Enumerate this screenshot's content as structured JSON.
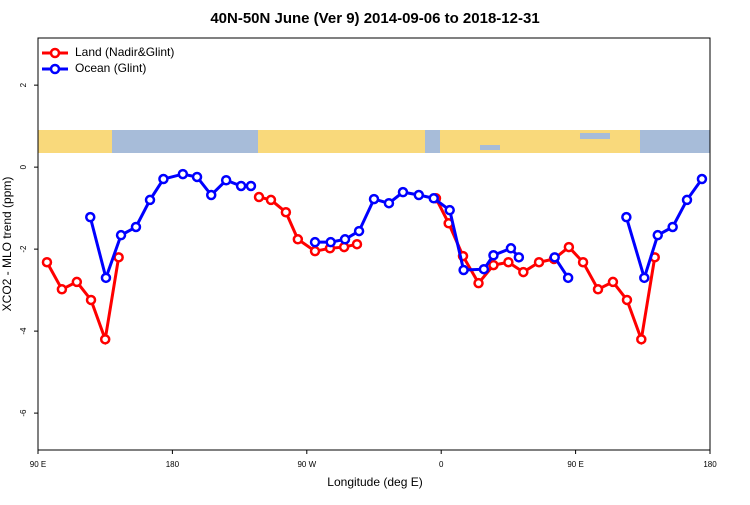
{
  "chart_data": {
    "type": "line",
    "title": "40N-50N June (Ver 9)   2014-09-06 to 2018-12-31",
    "x_label": "Longitude (deg E)",
    "y_label": "XCO2 - MLO trend (ppm)",
    "xlim": [
      90,
      540
    ],
    "xticks": [
      {
        "value": 90,
        "label": "90 E"
      },
      {
        "value": 180,
        "label": "180"
      },
      {
        "value": 270,
        "label": "90 W"
      },
      {
        "value": 360,
        "label": "0"
      },
      {
        "value": 450,
        "label": "90 E"
      },
      {
        "value": 540,
        "label": "180"
      }
    ],
    "ylim": [
      -6.9,
      3.15
    ],
    "yticks": [
      -6,
      -4,
      -2,
      0,
      2
    ],
    "legend": "top-left",
    "series": [
      {
        "name": "Land (Nadir&Glint)",
        "color": "#ff0000",
        "x": [
          96,
          106,
          116,
          125.5,
          135,
          144,
          null,
          238,
          246,
          256,
          264,
          275.5,
          285.5,
          295,
          303.6,
          null,
          356.5,
          365,
          374.6,
          385,
          395,
          405,
          415,
          425.5,
          435.5,
          445.5,
          455,
          465,
          475,
          484.4,
          494,
          503
        ],
        "values": [
          -2.32,
          -2.98,
          -2.8,
          -3.24,
          -4.2,
          -2.2,
          null,
          -0.73,
          -0.8,
          -1.1,
          -1.76,
          -2.05,
          -1.98,
          -1.95,
          -1.88,
          null,
          -0.76,
          -1.37,
          -2.17,
          -2.83,
          -2.39,
          -2.32,
          -2.56,
          -2.32,
          -2.24,
          -1.95,
          -2.32,
          -2.98,
          -2.8,
          -3.24,
          -4.2,
          -2.2
        ]
      },
      {
        "name": "Ocean (Glint)",
        "color": "#0000ff",
        "x": [
          125,
          135.5,
          145.6,
          155.6,
          165,
          174,
          187,
          196.5,
          206,
          216,
          226,
          232.6,
          null,
          275.5,
          286,
          295.6,
          305,
          315,
          325,
          334.4,
          345,
          355,
          365.7,
          375,
          388.6,
          395,
          406.7,
          412,
          null,
          436,
          445,
          null,
          484,
          496,
          505,
          515,
          524.6,
          534.6
        ],
        "values": [
          -1.22,
          -2.7,
          -1.66,
          -1.46,
          -0.8,
          -0.29,
          -0.17,
          -0.24,
          -0.68,
          -0.32,
          -0.46,
          -0.46,
          null,
          -1.83,
          -1.83,
          -1.76,
          -1.56,
          -0.78,
          -0.88,
          -0.61,
          -0.68,
          -0.76,
          -1.05,
          -2.51,
          -2.49,
          -2.15,
          -1.98,
          -2.2,
          null,
          -2.2,
          -2.7,
          null,
          -1.22,
          -2.7,
          -1.66,
          -1.46,
          -0.8,
          -0.29
        ]
      }
    ]
  }
}
